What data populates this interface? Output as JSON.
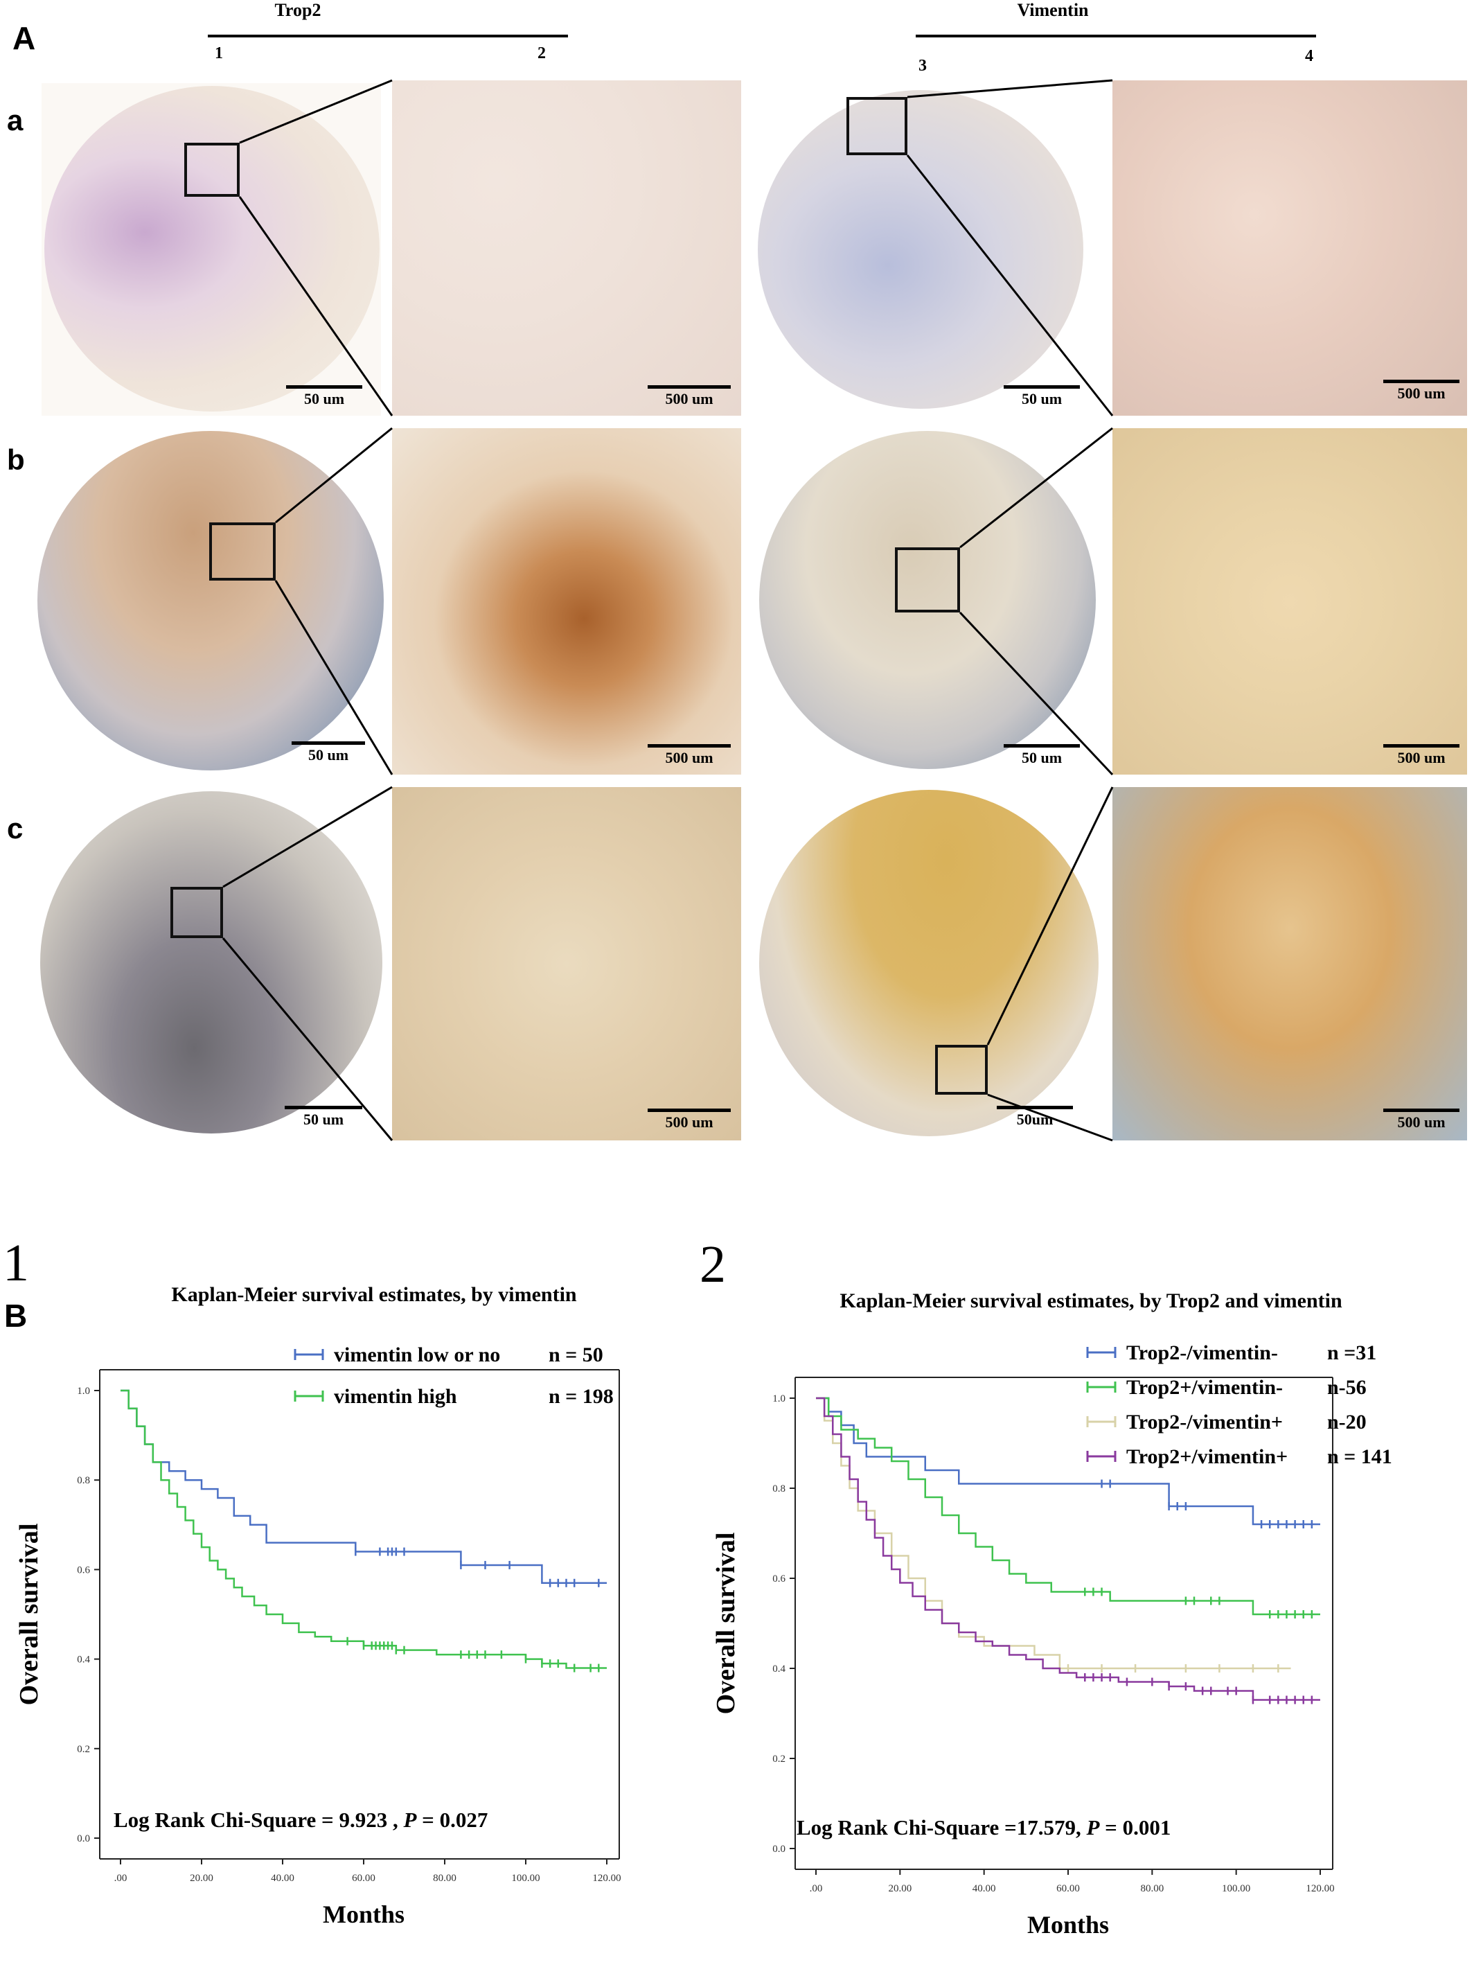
{
  "panel_a": {
    "letter": "A",
    "groups": [
      {
        "title": "Trop2",
        "columns": [
          "1",
          "2"
        ]
      },
      {
        "title": "Vimentin",
        "columns": [
          "3",
          "4"
        ]
      }
    ],
    "rows": [
      {
        "letter": "a",
        "scales": [
          "50 um",
          "500 um",
          "50 um",
          "500 um"
        ]
      },
      {
        "letter": "b",
        "scales": [
          "50 um",
          "500 um",
          "50 um",
          "500 um"
        ]
      },
      {
        "letter": "c",
        "scales": [
          "50 um",
          "500 um",
          "50um",
          "500 um"
        ]
      }
    ]
  },
  "panel_b": {
    "letter": "B"
  },
  "colors": {
    "blue": "#4a6fc4",
    "green": "#3fc24f",
    "tan": "#d8d2a8",
    "purple": "#8a3a9e"
  },
  "chart_data": [
    {
      "type": "line",
      "number": "1",
      "title": "Kaplan-Meier survival estimates, by  vimentin",
      "xlabel": "Months",
      "ylabel": "Overall survival",
      "xlim": [
        0,
        120
      ],
      "ylim": [
        0,
        1.0
      ],
      "xticks": [
        ".00",
        "20.00",
        "40.00",
        "60.00",
        "80.00",
        "100.00",
        "120.00"
      ],
      "yticks": [
        "0.0",
        "0.2",
        "0.4",
        "0.6",
        "0.8",
        "1.0"
      ],
      "legend_position": "top-right",
      "legend": [
        {
          "name": "vimentin low or no",
          "n": "n = 50",
          "color": "#4a6fc4"
        },
        {
          "name": "vimentin high",
          "n": "n = 198",
          "color": "#3fc24f"
        }
      ],
      "annotation": {
        "prefix": "Log Rank Chi-Square = 9.923  , ",
        "p": "P",
        "suffix": " =  0.027"
      },
      "series": [
        {
          "name": "vimentin low or no",
          "color": "#4a6fc4",
          "x": [
            0,
            2,
            4,
            6,
            8,
            12,
            16,
            20,
            24,
            28,
            32,
            36,
            45,
            52,
            58,
            62,
            70,
            78,
            84,
            90,
            100,
            104,
            110,
            120
          ],
          "y": [
            1.0,
            0.96,
            0.92,
            0.88,
            0.84,
            0.82,
            0.8,
            0.78,
            0.76,
            0.72,
            0.7,
            0.66,
            0.66,
            0.66,
            0.64,
            0.64,
            0.64,
            0.64,
            0.61,
            0.61,
            0.61,
            0.57,
            0.57,
            0.57
          ],
          "censor_x": [
            58,
            64,
            66,
            67,
            68,
            70,
            84,
            90,
            96,
            106,
            108,
            110,
            112,
            118
          ]
        },
        {
          "name": "vimentin high",
          "color": "#3fc24f",
          "x": [
            0,
            2,
            4,
            6,
            8,
            10,
            12,
            14,
            16,
            18,
            20,
            22,
            24,
            26,
            28,
            30,
            33,
            36,
            40,
            44,
            48,
            52,
            56,
            60,
            64,
            68,
            72,
            78,
            84,
            90,
            96,
            100,
            104,
            110,
            120
          ],
          "y": [
            1.0,
            0.96,
            0.92,
            0.88,
            0.84,
            0.8,
            0.77,
            0.74,
            0.71,
            0.68,
            0.65,
            0.62,
            0.6,
            0.58,
            0.56,
            0.54,
            0.52,
            0.5,
            0.48,
            0.46,
            0.45,
            0.44,
            0.44,
            0.43,
            0.43,
            0.42,
            0.42,
            0.41,
            0.41,
            0.41,
            0.41,
            0.4,
            0.39,
            0.38,
            0.38
          ],
          "censor_x": [
            56,
            60,
            62,
            63,
            64,
            65,
            66,
            67,
            68,
            70,
            84,
            86,
            88,
            90,
            94,
            100,
            104,
            106,
            108,
            112,
            116,
            118
          ]
        }
      ]
    },
    {
      "type": "line",
      "number": "2",
      "title": "Kaplan-Meier survival estimates, by Trop2 and vimentin",
      "xlabel": "Months",
      "ylabel": "Overall survival",
      "xlim": [
        0,
        120
      ],
      "ylim": [
        0,
        1.0
      ],
      "xticks": [
        ".00",
        "20.00",
        "40.00",
        "60.00",
        "80.00",
        "100.00",
        "120.00"
      ],
      "yticks": [
        "0.0",
        "0.2",
        "0.4",
        "0.6",
        "0.8",
        "1.0"
      ],
      "legend_position": "top-right",
      "legend": [
        {
          "name": "Trop2-/vimentin-",
          "n": "n =31",
          "color": "#4a6fc4"
        },
        {
          "name": "Trop2+/vimentin-",
          "n": "n-56",
          "color": "#3fc24f"
        },
        {
          "name": "Trop2-/vimentin+",
          "n": "n-20",
          "color": "#d8d2a8"
        },
        {
          "name": "Trop2+/vimentin+",
          "n": "n = 141",
          "color": "#8a3a9e"
        }
      ],
      "annotation": {
        "prefix": "Log Rank Chi-Square  =17.579, ",
        "p": "P",
        "suffix": " = 0.001"
      },
      "series": [
        {
          "name": "Trop2-/vimentin-",
          "color": "#4a6fc4",
          "x": [
            0,
            3,
            6,
            9,
            12,
            20,
            26,
            34,
            50,
            68,
            84,
            92,
            104,
            120
          ],
          "y": [
            1.0,
            0.97,
            0.94,
            0.9,
            0.87,
            0.87,
            0.84,
            0.81,
            0.81,
            0.81,
            0.76,
            0.76,
            0.72,
            0.72
          ],
          "censor_x": [
            68,
            70,
            84,
            86,
            88,
            106,
            108,
            110,
            112,
            114,
            116,
            118
          ]
        },
        {
          "name": "Trop2+/vimentin-",
          "color": "#3fc24f",
          "x": [
            0,
            3,
            6,
            10,
            14,
            18,
            22,
            26,
            30,
            34,
            38,
            42,
            46,
            50,
            56,
            64,
            70,
            80,
            90,
            104,
            110,
            120
          ],
          "y": [
            1.0,
            0.96,
            0.93,
            0.91,
            0.89,
            0.86,
            0.82,
            0.78,
            0.74,
            0.7,
            0.67,
            0.64,
            0.61,
            0.59,
            0.57,
            0.57,
            0.55,
            0.55,
            0.55,
            0.52,
            0.52,
            0.52
          ],
          "censor_x": [
            64,
            66,
            68,
            88,
            90,
            94,
            96,
            108,
            110,
            112,
            114,
            116,
            118
          ]
        },
        {
          "name": "Trop2-/vimentin+",
          "color": "#d8d2a8",
          "x": [
            0,
            2,
            4,
            6,
            8,
            10,
            14,
            18,
            22,
            26,
            30,
            34,
            40,
            46,
            52,
            58,
            66,
            80,
            100,
            113
          ],
          "y": [
            1.0,
            0.95,
            0.9,
            0.85,
            0.8,
            0.75,
            0.7,
            0.65,
            0.6,
            0.55,
            0.5,
            0.47,
            0.45,
            0.45,
            0.43,
            0.4,
            0.4,
            0.4,
            0.4,
            0.4
          ],
          "censor_x": [
            60,
            68,
            76,
            88,
            96,
            104,
            110
          ]
        },
        {
          "name": "Trop2+/vimentin+",
          "color": "#8a3a9e",
          "x": [
            0,
            2,
            4,
            6,
            8,
            10,
            12,
            14,
            16,
            18,
            20,
            23,
            26,
            30,
            34,
            38,
            42,
            46,
            50,
            54,
            58,
            62,
            66,
            72,
            78,
            84,
            90,
            96,
            104,
            120
          ],
          "y": [
            1.0,
            0.96,
            0.92,
            0.87,
            0.82,
            0.77,
            0.73,
            0.69,
            0.65,
            0.62,
            0.59,
            0.56,
            0.53,
            0.5,
            0.48,
            0.46,
            0.45,
            0.43,
            0.42,
            0.4,
            0.39,
            0.38,
            0.38,
            0.37,
            0.37,
            0.36,
            0.35,
            0.35,
            0.33,
            0.33
          ],
          "censor_x": [
            64,
            66,
            68,
            70,
            74,
            80,
            84,
            88,
            92,
            94,
            98,
            100,
            104,
            108,
            110,
            112,
            114,
            116,
            118
          ]
        }
      ]
    }
  ]
}
